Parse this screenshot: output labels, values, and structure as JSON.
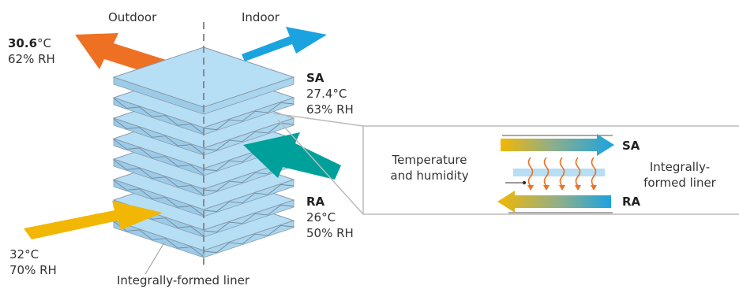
{
  "header": {
    "outdoor": "Outdoor",
    "indoor": "Indoor"
  },
  "flows": {
    "exhaust": {
      "temp_value": "30.6",
      "temp_unit": "°C",
      "humidity": "62% RH"
    },
    "outdoor_intake": {
      "temp": "32°C",
      "humidity": "70% RH"
    },
    "supply": {
      "code": "SA",
      "temp": "27.4°C",
      "humidity": "63% RH"
    },
    "return": {
      "code": "RA",
      "temp": "26°C",
      "humidity": "50% RH"
    }
  },
  "core_caption": "Integrally-formed liner",
  "detail": {
    "left_text_1": "Temperature",
    "left_text_2": "and humidity",
    "sa_label": "SA",
    "ra_label": "RA",
    "liner_line_1": "Integrally-",
    "liner_line_2": "formed liner"
  },
  "colors": {
    "exhaust": "#ee7023",
    "intake": "#f2b705",
    "supply": "#1aa3df",
    "return": "#00a09a",
    "plate": "#b6def5",
    "plate_edge": "#8a9aa8"
  }
}
